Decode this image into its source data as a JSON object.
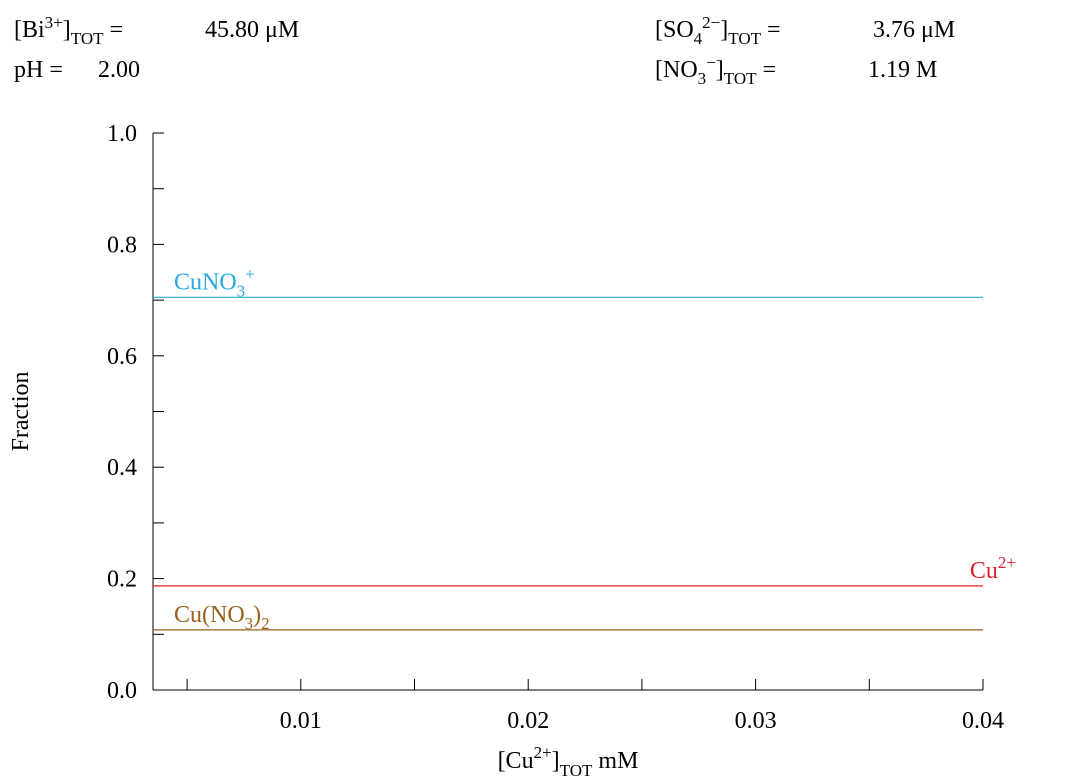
{
  "header": {
    "bi": {
      "prefix": "[Bi",
      "charge": "3+",
      "suffix": "]",
      "sub": "TOT",
      "eq": " =",
      "value": "45.80 μM"
    },
    "ph": {
      "label": "pH =",
      "value": "2.00"
    },
    "so4": {
      "prefix": "[SO",
      "sub1": "4",
      "charge": "2−",
      "suffix": "]",
      "sub": "TOT",
      "eq": " =",
      "value": "3.76 μM"
    },
    "no3": {
      "prefix": "[NO",
      "sub1": "3",
      "charge": "−",
      "suffix": "]",
      "sub": "TOT",
      "eq": " =",
      "value": "1.19 M"
    }
  },
  "chart_data": {
    "type": "line",
    "title": "",
    "ylabel": "Fraction",
    "xlabel": {
      "prefix": "[Cu",
      "charge": "2+",
      "suffix": "]",
      "sub": "TOT",
      "unit": "mM"
    },
    "xlim": [
      0.0035,
      0.04
    ],
    "ylim": [
      0.0,
      1.0
    ],
    "grid": false,
    "x_ticks": [
      {
        "value": 0.01,
        "label": "0.01"
      },
      {
        "value": 0.02,
        "label": "0.02"
      },
      {
        "value": 0.03,
        "label": "0.03"
      },
      {
        "value": 0.04,
        "label": "0.04"
      }
    ],
    "x_minor_ticks": [
      0.005,
      0.015,
      0.025,
      0.035
    ],
    "y_ticks": [
      {
        "value": 0.0,
        "label": "0.0"
      },
      {
        "value": 0.2,
        "label": "0.2"
      },
      {
        "value": 0.4,
        "label": "0.4"
      },
      {
        "value": 0.6,
        "label": "0.6"
      },
      {
        "value": 0.8,
        "label": "0.8"
      },
      {
        "value": 1.0,
        "label": "1.0"
      }
    ],
    "y_minor_ticks": [
      0.1,
      0.3,
      0.5,
      0.7,
      0.9
    ],
    "series": [
      {
        "name": "CuNO3+",
        "label_base": "CuNO",
        "label_sub": "3",
        "label_sup": "+",
        "label_tail": "",
        "color": "#29a9e0",
        "label_pos": "left",
        "x": [
          0.0035,
          0.04
        ],
        "y": [
          0.705,
          0.705
        ]
      },
      {
        "name": "Cu2+",
        "label_base": "Cu",
        "label_sub": "",
        "label_sup": "2+",
        "label_tail": "",
        "color": "#e0202a",
        "label_pos": "right",
        "x": [
          0.0035,
          0.04
        ],
        "y": [
          0.187,
          0.187
        ]
      },
      {
        "name": "Cu(NO3)2",
        "label_base": "Cu(NO",
        "label_sub": "3",
        "label_sup": "",
        "label_tail": ")",
        "label_tail_sub": "2",
        "color": "#99621e",
        "label_pos": "left",
        "x": [
          0.0035,
          0.04
        ],
        "y": [
          0.108,
          0.108
        ]
      }
    ]
  }
}
